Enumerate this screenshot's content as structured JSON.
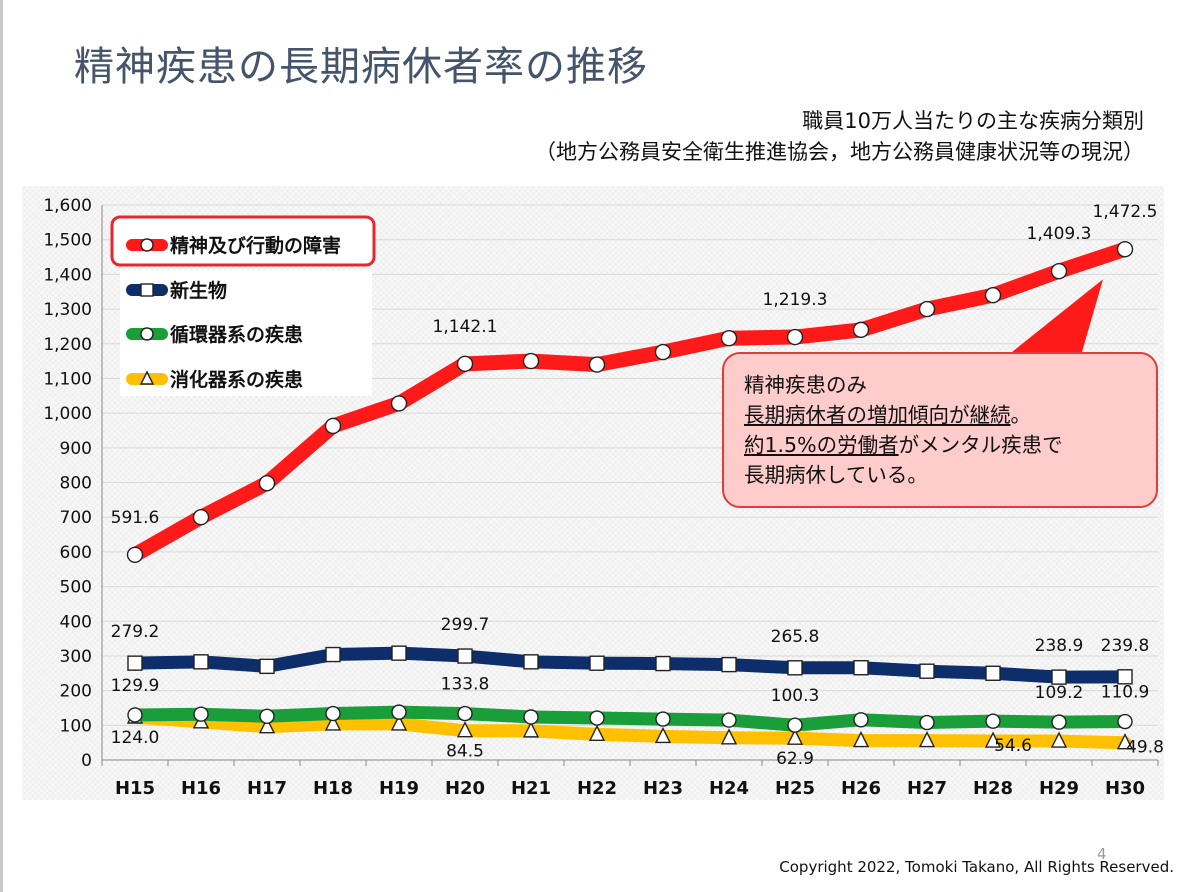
{
  "slide": {
    "title": "精神疾患の長期病休者率の推移",
    "subtitle_line1": "職員10万人当たりの主な疾病分類別",
    "subtitle_line2": "（地方公務員安全衛生推進協会，地方公務員健康状況等の現況）",
    "page_number": "4",
    "copyright": "Copyright 2022, Tomoki Takano, All Rights Reserved."
  },
  "callout": {
    "line1": "精神疾患のみ",
    "line2_underlined": "長期病休者の増加傾向が継続",
    "line2_end": "。",
    "line3_underlined": "約1.5%の労働者",
    "line3_end": "がメンタル疾患で",
    "line4": "長期病休している。",
    "fill_color": "#ffcccc",
    "border_color": "#e03c3c"
  },
  "chart_data": {
    "type": "line",
    "categories": [
      "H15",
      "H16",
      "H17",
      "H18",
      "H19",
      "H20",
      "H21",
      "H22",
      "H23",
      "H24",
      "H25",
      "H26",
      "H27",
      "H28",
      "H29",
      "H30"
    ],
    "ylim": [
      0,
      1600
    ],
    "yticks": [
      "0",
      "100",
      "200",
      "300",
      "400",
      "500",
      "600",
      "700",
      "800",
      "900",
      "1,000",
      "1,100",
      "1,200",
      "1,300",
      "1,400",
      "1,500",
      "1,600"
    ],
    "grid": "horizontal",
    "legend_position": "top-left",
    "series": [
      {
        "name": "精神及び行動の障害",
        "color": "#ff1a1a",
        "marker": "circle",
        "highlighted": true,
        "values": [
          591.6,
          700,
          798,
          963,
          1028,
          1142.1,
          1150,
          1140,
          1176,
          1216,
          1219.3,
          1240,
          1300,
          1340,
          1409.3,
          1472.5
        ],
        "labels": {
          "0": "591.6",
          "5": "1,142.1",
          "10": "1,219.3",
          "14": "1,409.3",
          "15": "1,472.5"
        }
      },
      {
        "name": "新生物",
        "color": "#0d2d6b",
        "marker": "square",
        "values": [
          279.2,
          283,
          270,
          304,
          308,
          299.7,
          283,
          279,
          278,
          275,
          265.8,
          266,
          256,
          250,
          238.9,
          239.8
        ],
        "labels": {
          "0": "279.2",
          "5": "299.7",
          "10": "265.8",
          "14": "238.9",
          "15": "239.8"
        }
      },
      {
        "name": "循環器系の疾患",
        "color": "#1a9e3a",
        "marker": "circle",
        "values": [
          129.9,
          132,
          126,
          134,
          138,
          133.8,
          124,
          121,
          118,
          115,
          100.3,
          116,
          108,
          112,
          109.2,
          110.9
        ],
        "labels": {
          "0": "129.9",
          "5": "133.8",
          "10": "100.3",
          "14": "109.2",
          "15": "110.9"
        }
      },
      {
        "name": "消化器系の疾患",
        "color": "#ffc000",
        "marker": "triangle",
        "values": [
          124.0,
          110,
          96,
          104,
          104,
          84.5,
          84,
          74,
          68,
          64,
          62.9,
          56,
          56,
          54.6,
          54.6,
          49.8
        ],
        "labels": {
          "0": "124.0",
          "5": "84.5",
          "10": "62.9",
          "13": "54.6",
          "15": "49.8"
        }
      }
    ]
  }
}
